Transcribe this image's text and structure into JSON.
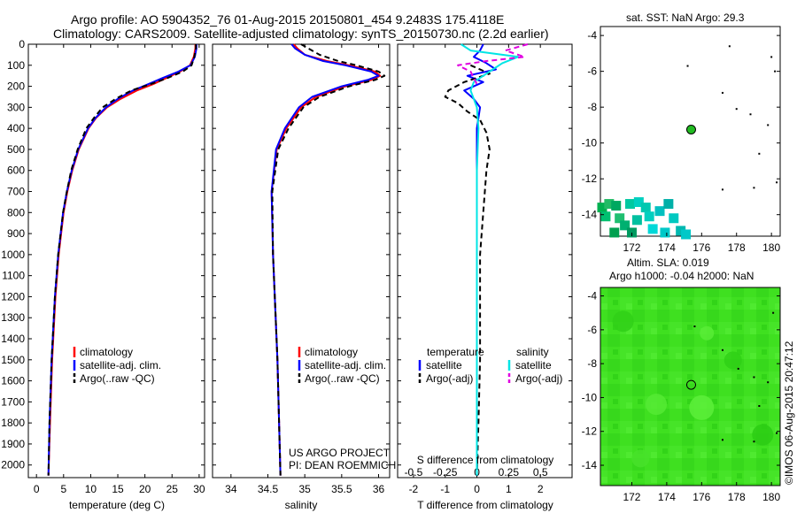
{
  "header": {
    "line1": "Argo profile: AO 5904352_76 01-Aug-2015 20150801_454 9.2483S 175.4118E",
    "line2": "Climatology: CARS2009. Satellite-adjusted climatology: synTS_20150730.nc (2.2d earlier)"
  },
  "footer_stamp": "©IMOS 06-Aug-2015 20:47:12",
  "project_note": [
    "US ARGO PROJECT",
    "PI: DEAN ROEMMICH"
  ],
  "colors": {
    "climatology": "#ff0000",
    "satellite": "#0000ff",
    "argo": "#000000",
    "sal_satellite": "#00e5e5",
    "sal_argo": "#e000e0",
    "sst_dot": "#22bb22"
  },
  "chart_data": [
    {
      "id": "temperature",
      "type": "line",
      "xlabel": "temperature (deg C)",
      "ylabel": "",
      "xlim": [
        -1.5,
        31
      ],
      "ylim": [
        0,
        2060
      ],
      "y_inverted": true,
      "xticks": [
        0,
        5,
        10,
        15,
        20,
        25,
        30
      ],
      "yticks": [
        0,
        100,
        200,
        300,
        400,
        500,
        600,
        700,
        800,
        900,
        1000,
        1100,
        1200,
        1300,
        1400,
        1500,
        1600,
        1700,
        1800,
        1900,
        2000
      ],
      "legend": [
        "climatology",
        "satellite-adj. clim.",
        "Argo(..raw -QC)"
      ],
      "series": [
        {
          "name": "climatology",
          "color": "#ff0000",
          "dash": "",
          "depth": [
            0,
            20,
            60,
            100,
            130,
            160,
            190,
            220,
            260,
            300,
            350,
            400,
            500,
            600,
            700,
            800,
            1000,
            1200,
            1500,
            1800,
            2050
          ],
          "values": [
            29.3,
            29.3,
            29.0,
            28.3,
            26.5,
            24.0,
            21.5,
            18.5,
            15.5,
            13.0,
            11.0,
            9.6,
            7.8,
            6.6,
            5.7,
            5.0,
            4.1,
            3.5,
            2.9,
            2.5,
            2.2
          ]
        },
        {
          "name": "satellite-adj. clim.",
          "color": "#0000ff",
          "dash": "",
          "depth": [
            0,
            20,
            60,
            100,
            130,
            160,
            190,
            220,
            260,
            300,
            350,
            400,
            500,
            600,
            700,
            800,
            1000,
            1200,
            1500,
            1800,
            2050
          ],
          "values": [
            29.5,
            29.5,
            29.2,
            28.4,
            26.2,
            23.3,
            20.6,
            17.8,
            15.0,
            12.8,
            10.9,
            9.5,
            7.7,
            6.5,
            5.6,
            4.9,
            4.0,
            3.4,
            2.8,
            2.4,
            2.2
          ]
        },
        {
          "name": "Argo(..raw -QC)",
          "color": "#000000",
          "dash": "6,4",
          "depth": [
            0,
            20,
            60,
            100,
            130,
            160,
            190,
            220,
            260,
            300,
            350,
            400,
            500,
            600,
            700,
            800,
            1000,
            1200,
            1500,
            1800,
            2050
          ],
          "values": [
            29.4,
            29.4,
            29.1,
            28.6,
            27.0,
            24.2,
            21.0,
            17.5,
            14.6,
            12.2,
            10.6,
            9.2,
            7.6,
            6.4,
            5.6,
            4.9,
            4.0,
            3.4,
            2.8,
            2.4,
            2.2
          ]
        }
      ]
    },
    {
      "id": "salinity",
      "type": "line",
      "xlabel": "salinity",
      "ylabel": "",
      "xlim": [
        33.75,
        36.15
      ],
      "ylim": [
        0,
        2060
      ],
      "y_inverted": true,
      "xticks": [
        34,
        34.5,
        35,
        35.5,
        36
      ],
      "legend": [
        "climatology",
        "satellite-adj. clim.",
        "Argo(..raw -QC)"
      ],
      "series": [
        {
          "name": "climatology",
          "color": "#ff0000",
          "dash": "",
          "depth": [
            0,
            20,
            50,
            80,
            100,
            130,
            150,
            170,
            200,
            250,
            300,
            400,
            500,
            700,
            1000,
            1500,
            2050
          ],
          "values": [
            34.85,
            34.9,
            35.0,
            35.3,
            35.6,
            35.95,
            36.02,
            35.9,
            35.55,
            35.15,
            34.95,
            34.75,
            34.62,
            34.55,
            34.57,
            34.63,
            34.67
          ]
        },
        {
          "name": "satellite-adj. clim.",
          "color": "#0000ff",
          "dash": "",
          "depth": [
            0,
            20,
            50,
            80,
            100,
            130,
            150,
            170,
            200,
            250,
            300,
            400,
            500,
            700,
            1000,
            1500,
            2050
          ],
          "values": [
            34.82,
            34.87,
            35.0,
            35.25,
            35.55,
            35.9,
            36.0,
            35.85,
            35.5,
            35.1,
            34.92,
            34.73,
            34.61,
            34.55,
            34.57,
            34.63,
            34.67
          ]
        },
        {
          "name": "Argo(..raw -QC)",
          "color": "#000000",
          "dash": "6,4",
          "depth": [
            0,
            20,
            50,
            80,
            100,
            130,
            150,
            170,
            200,
            250,
            300,
            400,
            500,
            700,
            1000,
            1500,
            2050
          ],
          "values": [
            34.95,
            35.05,
            35.2,
            35.45,
            35.7,
            36.0,
            36.08,
            35.95,
            35.6,
            35.2,
            34.98,
            34.78,
            34.64,
            34.56,
            34.57,
            34.63,
            34.67
          ]
        }
      ]
    },
    {
      "id": "difference",
      "type": "line",
      "xlabel": "T difference from climatology",
      "xlabel2": "S difference from climatology",
      "xlim": [
        -2.5,
        3
      ],
      "ylim": [
        0,
        2060
      ],
      "y_inverted": true,
      "xticks": [
        -2,
        -1,
        0,
        1,
        2
      ],
      "xticks_top_labels": [
        "-0.5",
        "-0.25",
        "0",
        "0.25",
        "0.5"
      ],
      "xticks_top_at": [
        -2,
        -1,
        0,
        1,
        2
      ],
      "legend_temperature_title": "temperature",
      "legend_salinity_title": "salinity",
      "legend": [
        "satellite",
        "Argo(-adj)",
        "satellite",
        "Argo(-adj)"
      ],
      "series": [
        {
          "name": "temperature satellite",
          "color": "#0000ff",
          "dash": "",
          "depth": [
            0,
            30,
            60,
            90,
            120,
            150,
            180,
            220,
            260,
            300,
            400,
            600,
            1000,
            1500,
            2050
          ],
          "values": [
            0.2,
            0.1,
            -0.1,
            0.3,
            0.6,
            -0.3,
            0.2,
            -0.4,
            -0.1,
            0.1,
            0.0,
            0.0,
            0.0,
            0.0,
            0.0
          ]
        },
        {
          "name": "temperature Argo(-adj)",
          "color": "#000000",
          "dash": "6,4",
          "depth": [
            100,
            140,
            180,
            220,
            250,
            280,
            320,
            360,
            420,
            500,
            600,
            800,
            1000,
            1200,
            1500,
            1800,
            2050
          ],
          "values": [
            -0.2,
            0.4,
            -0.4,
            -0.9,
            -1.0,
            -0.6,
            -0.3,
            0.1,
            0.3,
            0.4,
            0.3,
            0.2,
            0.1,
            0.1,
            0.1,
            0.05,
            0.0
          ]
        },
        {
          "name": "salinity satellite",
          "color": "#00e5e5",
          "dash": "",
          "depth": [
            0,
            30,
            60,
            90,
            120,
            150,
            180,
            220,
            260,
            300,
            400,
            600,
            1000,
            1500,
            2050
          ],
          "values": [
            -0.5,
            -0.2,
            1.3,
            0.8,
            0.5,
            0.2,
            -0.1,
            -0.2,
            -0.1,
            0.0,
            0.05,
            0.0,
            0.0,
            0.0,
            0.0
          ]
        },
        {
          "name": "salinity Argo(-adj)",
          "color": "#e000e0",
          "dash": "6,4",
          "depth": [
            0,
            30,
            60,
            80,
            100,
            130,
            160,
            190
          ],
          "values": [
            1.6,
            0.9,
            1.5,
            0.3,
            -0.6,
            -0.2,
            -0.1,
            0.0
          ]
        }
      ]
    },
    {
      "id": "sst_map",
      "type": "scatter",
      "title": "sat. SST: NaN Argo: 29.3",
      "xlim": [
        170.2,
        180.5
      ],
      "ylim": [
        -15.2,
        -3.5
      ],
      "xticks": [
        172,
        174,
        176,
        178,
        180
      ],
      "yticks": [
        -4,
        -6,
        -8,
        -10,
        -12,
        -14
      ],
      "argo_position": {
        "x": 175.4,
        "y": -9.25
      },
      "island_dots": [
        [
          175.2,
          -5.7
        ],
        [
          177.2,
          -7.2
        ],
        [
          177.6,
          -4.6
        ],
        [
          178.0,
          -8.1
        ],
        [
          178.8,
          -8.4
        ],
        [
          179.8,
          -9.0
        ],
        [
          179.3,
          -10.6
        ],
        [
          177.2,
          -12.6
        ],
        [
          179.0,
          -12.5
        ],
        [
          180.3,
          -12.2
        ],
        [
          180.0,
          -5.2
        ],
        [
          180.2,
          -6.0
        ]
      ],
      "sst_cells": [
        [
          170.3,
          -13.6,
          "#00b050"
        ],
        [
          170.7,
          -13.4,
          "#22bb66"
        ],
        [
          171.1,
          -13.5,
          "#00a860"
        ],
        [
          170.5,
          -14.1,
          "#00c070"
        ],
        [
          171.3,
          -14.2,
          "#1fbf70"
        ],
        [
          171.9,
          -13.4,
          "#00c8a0"
        ],
        [
          172.4,
          -13.3,
          "#00d0c0"
        ],
        [
          172.8,
          -13.6,
          "#00c8b0"
        ],
        [
          171.6,
          -14.6,
          "#00b070"
        ],
        [
          172.3,
          -14.3,
          "#00c0a0"
        ],
        [
          173.0,
          -14.1,
          "#00cfbf"
        ],
        [
          173.6,
          -13.8,
          "#00c0c0"
        ],
        [
          174.1,
          -13.4,
          "#00b0a8"
        ],
        [
          174.4,
          -14.2,
          "#00c8c0"
        ],
        [
          173.2,
          -14.8,
          "#00d8d8"
        ],
        [
          174.8,
          -14.9,
          "#00b8b0"
        ],
        [
          172.0,
          -15.0,
          "#009a60"
        ],
        [
          173.9,
          -15.0,
          "#00c8c8"
        ],
        [
          175.1,
          -15.1,
          "#00c8c8"
        ],
        [
          171.0,
          -15.0,
          "#00a050"
        ]
      ]
    },
    {
      "id": "sla_map",
      "type": "heatmap",
      "title": "Altim. SLA: 0.019",
      "subtitle": "Argo h1000: -0.04 h2000: NaN",
      "xlim": [
        170.2,
        180.5
      ],
      "ylim": [
        -15.2,
        -3.5
      ],
      "xticks": [
        172,
        174,
        176,
        178,
        180
      ],
      "yticks": [
        -4,
        -6,
        -8,
        -10,
        -12,
        -14
      ],
      "argo_position": {
        "x": 175.4,
        "y": -9.25
      },
      "island_dots": [
        [
          175.6,
          -5.8
        ],
        [
          177.2,
          -7.2
        ],
        [
          178.1,
          -8.3
        ],
        [
          179.0,
          -8.8
        ],
        [
          179.8,
          -9.1
        ],
        [
          179.3,
          -10.5
        ],
        [
          177.2,
          -12.5
        ],
        [
          179.0,
          -12.6
        ],
        [
          180.3,
          -12.1
        ],
        [
          180.1,
          -5.0
        ]
      ]
    }
  ]
}
